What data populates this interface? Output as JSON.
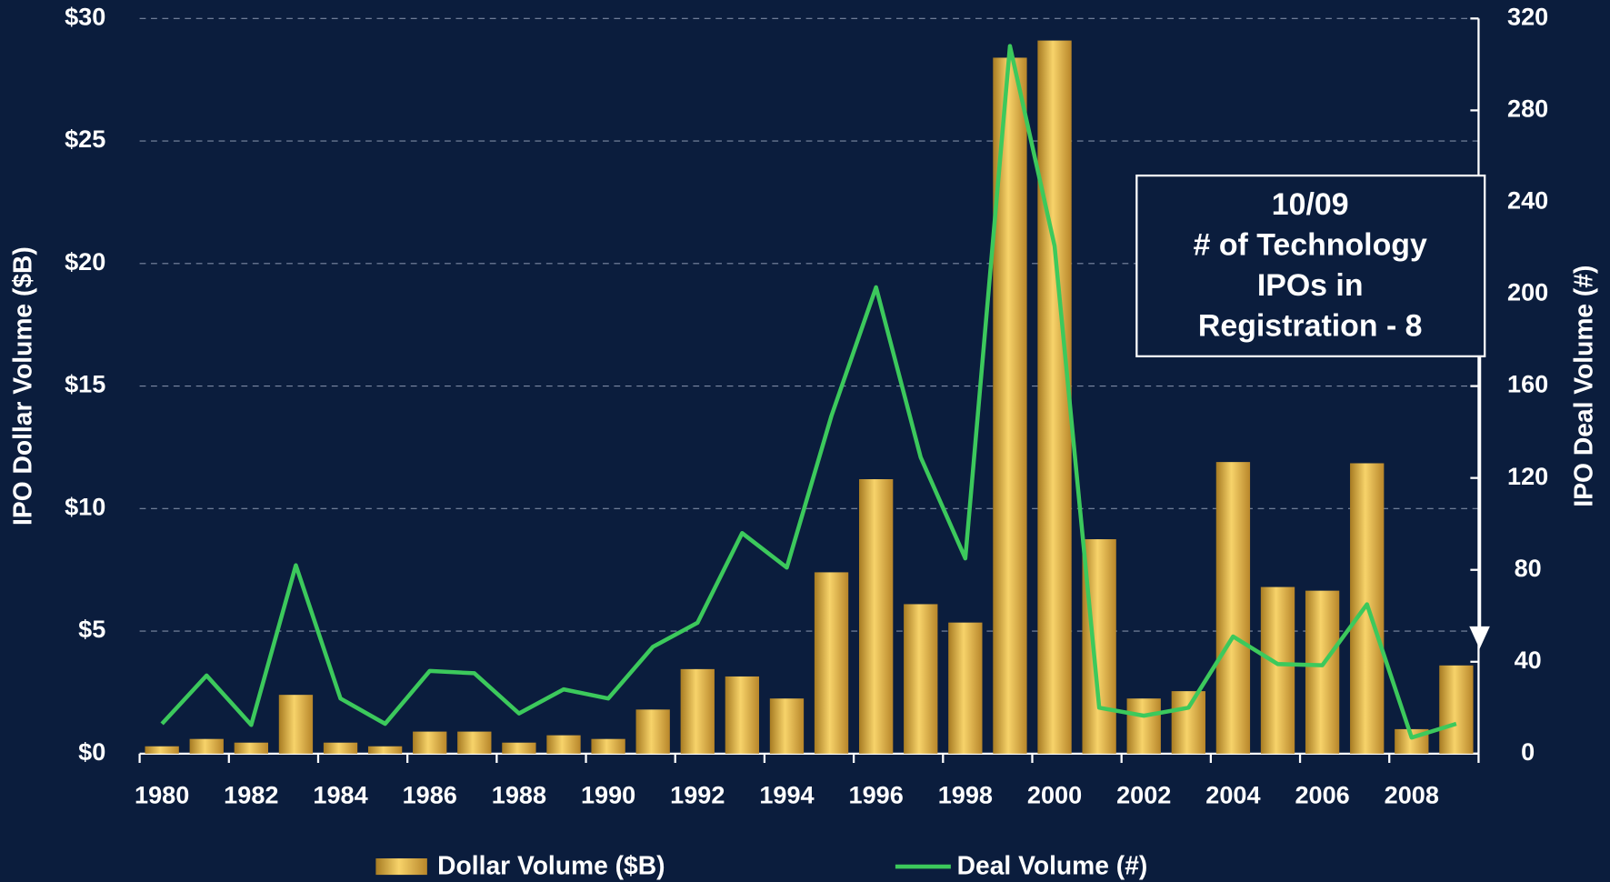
{
  "chart_data": {
    "type": "bar_line",
    "categories": [
      "1980",
      null,
      "1982",
      null,
      "1984",
      null,
      "1986",
      null,
      "1988",
      null,
      "1990",
      null,
      "1992",
      null,
      "1994",
      null,
      "1996",
      null,
      "1998",
      null,
      "2000",
      null,
      "2002",
      null,
      "2004",
      null,
      "2006",
      null,
      "2008",
      null
    ],
    "series": [
      {
        "name": "Dollar Volume ($B)",
        "type": "bar",
        "color": "#e8b84a",
        "values": [
          0.3,
          0.6,
          0.45,
          2.4,
          0.45,
          0.3,
          0.9,
          0.9,
          0.45,
          0.75,
          0.6,
          1.8,
          3.45,
          3.15,
          2.25,
          7.4,
          11.2,
          6.1,
          5.35,
          28.4,
          29.1,
          8.75,
          2.25,
          2.55,
          11.9,
          6.8,
          6.65,
          11.85,
          1.0,
          3.6
        ]
      },
      {
        "name": "Deal Volume (#)",
        "type": "line",
        "axis": "y2",
        "color": "#3cc95c",
        "values": [
          13,
          34,
          12.5,
          82,
          24,
          13,
          36,
          35,
          17.5,
          28,
          24,
          46.5,
          57,
          96,
          81,
          147,
          203,
          129,
          85,
          308,
          221,
          20,
          16.5,
          20,
          51,
          39,
          38.5,
          65,
          7,
          13
        ]
      }
    ],
    "y_label": "IPO Dollar Volume ($B)",
    "y2_label": "IPO Deal Volume (#)",
    "ylim": [
      0,
      30
    ],
    "yticks": [
      {
        "value": 0,
        "label": "$0"
      },
      {
        "value": 5,
        "label": "$5"
      },
      {
        "value": 10,
        "label": "$10"
      },
      {
        "value": 15,
        "label": "$15"
      },
      {
        "value": 20,
        "label": "$20"
      },
      {
        "value": 25,
        "label": "$25"
      },
      {
        "value": 30,
        "label": "$30"
      }
    ],
    "y2lim": [
      0,
      320
    ],
    "y2ticks": [
      0,
      40,
      80,
      120,
      160,
      200,
      240,
      280,
      320
    ],
    "grid": true,
    "legend": "bottom",
    "annotation": [
      "10/09",
      "# of Technology",
      "IPOs in",
      "Registration - 8"
    ]
  }
}
